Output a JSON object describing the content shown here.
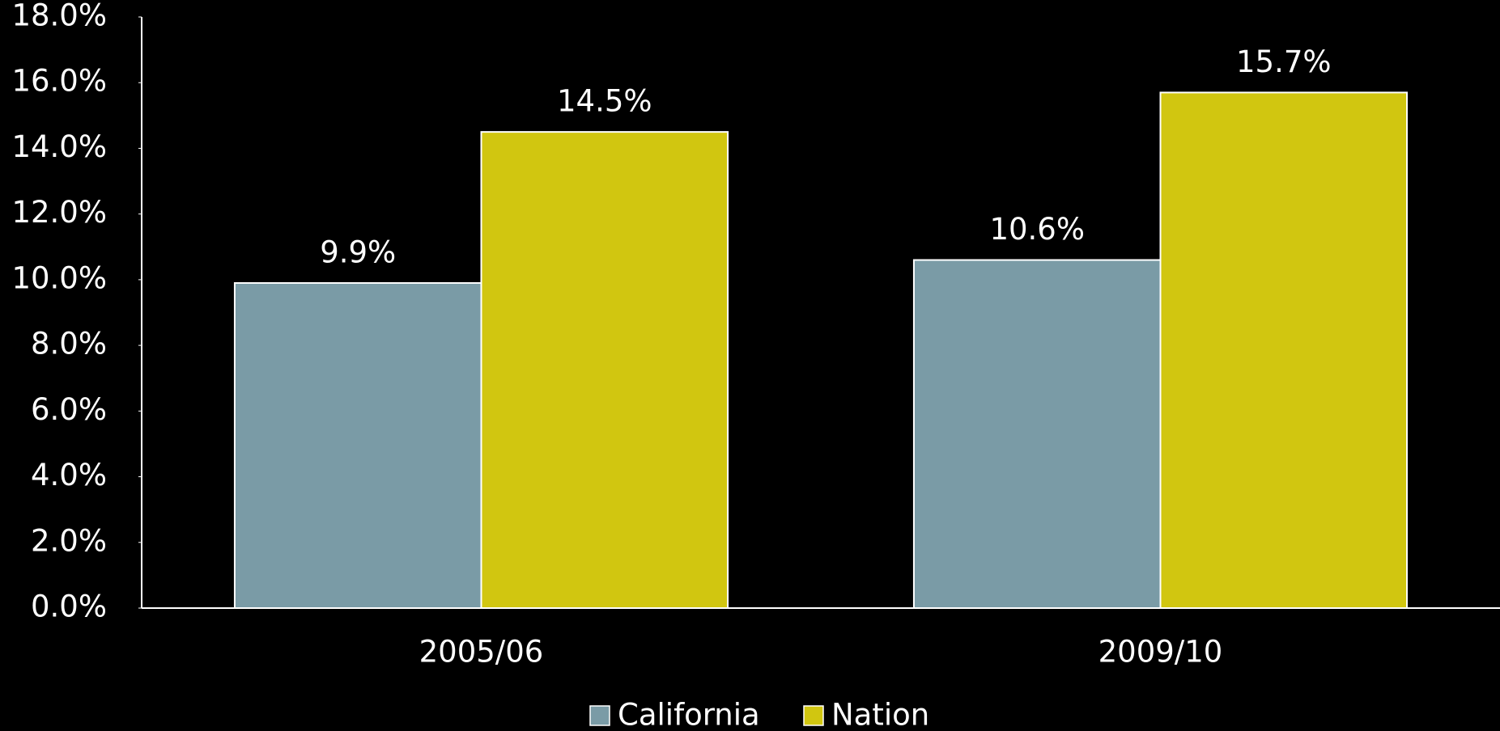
{
  "chart_data": {
    "type": "bar",
    "categories": [
      "2005/06",
      "2009/10"
    ],
    "series": [
      {
        "name": "California",
        "color": "#7a9ba6",
        "values": [
          9.9,
          10.6
        ],
        "value_labels": [
          "9.9%",
          "10.6%"
        ]
      },
      {
        "name": "Nation",
        "color": "#d1c610",
        "values": [
          14.5,
          15.7
        ],
        "value_labels": [
          "14.5%",
          "15.7%"
        ]
      }
    ],
    "ylim": [
      0,
      18
    ],
    "yticks": [
      {
        "value": 0,
        "label": "0.0%"
      },
      {
        "value": 2,
        "label": "2.0%"
      },
      {
        "value": 4,
        "label": "4.0%"
      },
      {
        "value": 6,
        "label": "6.0%"
      },
      {
        "value": 8,
        "label": "8.0%"
      },
      {
        "value": 10,
        "label": "10.0%"
      },
      {
        "value": 12,
        "label": "12.0%"
      },
      {
        "value": 14,
        "label": "14.0%"
      },
      {
        "value": 16,
        "label": "16.0%"
      },
      {
        "value": 18,
        "label": "18.0%"
      }
    ],
    "grid": false,
    "legend": "bottom"
  }
}
